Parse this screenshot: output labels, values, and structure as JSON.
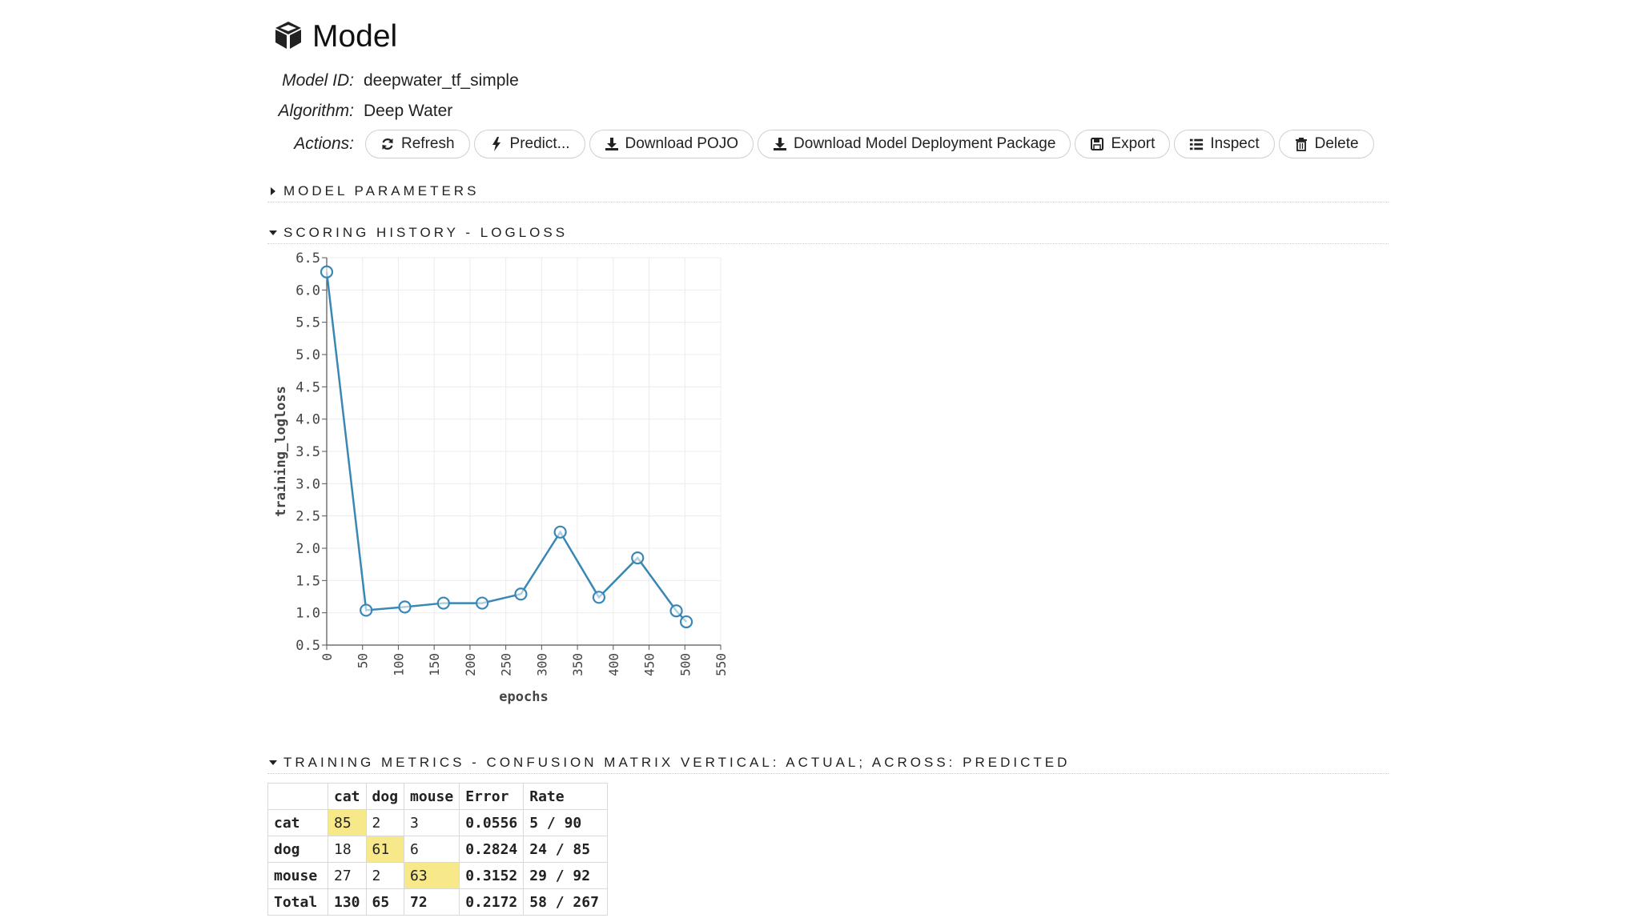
{
  "header": {
    "icon": "cube-icon",
    "title": "Model"
  },
  "info": {
    "model_id_label": "Model ID:",
    "model_id": "deepwater_tf_simple",
    "algorithm_label": "Algorithm:",
    "algorithm": "Deep Water",
    "actions_label": "Actions:"
  },
  "actions": [
    {
      "name": "refresh-button",
      "icon": "refresh-icon",
      "label": "Refresh"
    },
    {
      "name": "predict-button",
      "icon": "bolt-icon",
      "label": "Predict..."
    },
    {
      "name": "download-pojo-button",
      "icon": "download-icon",
      "label": "Download POJO"
    },
    {
      "name": "download-deployment-package-button",
      "icon": "download-icon",
      "label": "Download Model Deployment Package"
    },
    {
      "name": "export-button",
      "icon": "save-icon",
      "label": "Export"
    },
    {
      "name": "inspect-button",
      "icon": "list-icon",
      "label": "Inspect"
    },
    {
      "name": "delete-button",
      "icon": "trash-icon",
      "label": "Delete"
    }
  ],
  "sections": {
    "model_parameters": "MODEL PARAMETERS",
    "scoring_history": "SCORING HISTORY - LOGLOSS",
    "training_metrics": "TRAINING METRICS - CONFUSION MATRIX VERTICAL: ACTUAL; ACROSS: PREDICTED"
  },
  "chart_data": {
    "type": "line",
    "xlabel": "epochs",
    "ylabel": "training_logloss",
    "xlim": [
      0,
      550
    ],
    "ylim": [
      0.5,
      6.5
    ],
    "xticks": [
      0,
      50,
      100,
      150,
      200,
      250,
      300,
      350,
      400,
      450,
      500,
      550
    ],
    "yticks": [
      0.5,
      1.0,
      1.5,
      2.0,
      2.5,
      3.0,
      3.5,
      4.0,
      4.5,
      5.0,
      5.5,
      6.0,
      6.5
    ],
    "grid": true,
    "series_color": "#3a87b5",
    "x": [
      0,
      55,
      109,
      163,
      217,
      271,
      326,
      380,
      434,
      488,
      502
    ],
    "y": [
      6.28,
      1.04,
      1.09,
      1.15,
      1.15,
      1.29,
      2.25,
      1.24,
      1.85,
      1.03,
      0.86
    ]
  },
  "confusion_matrix": {
    "columns": [
      "",
      "cat",
      "dog",
      "mouse",
      "Error",
      "Rate"
    ],
    "rows": [
      {
        "label": "cat",
        "cells": [
          "85",
          "2",
          "3"
        ],
        "error": "0.0556",
        "rate": "5 / 90",
        "diag": 0
      },
      {
        "label": "dog",
        "cells": [
          "18",
          "61",
          "6"
        ],
        "error": "0.2824",
        "rate": "24 / 85",
        "diag": 1
      },
      {
        "label": "mouse",
        "cells": [
          "27",
          "2",
          "63"
        ],
        "error": "0.3152",
        "rate": "29 / 92",
        "diag": 2
      }
    ],
    "total": {
      "label": "Total",
      "cells": [
        "130",
        "65",
        "72"
      ],
      "error": "0.2172",
      "rate": "58 / 267"
    },
    "highlight_color": "#f7e98a"
  }
}
